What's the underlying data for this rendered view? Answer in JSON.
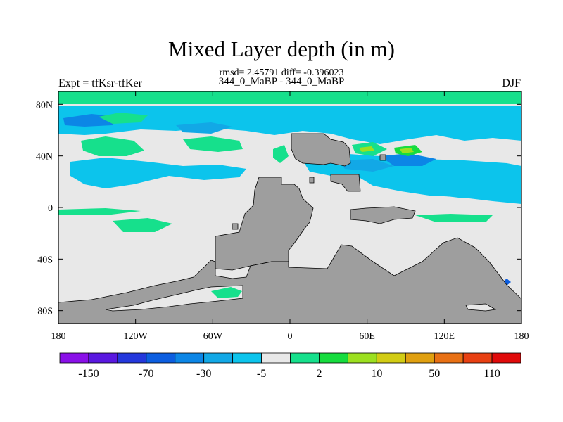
{
  "chart_data": {
    "type": "heatmap",
    "title": "Mixed Layer depth (in m)",
    "stats_line": "rmsd= 2.45791 diff= -0.396023",
    "runs_line": "344_0_MaBP - 344_0_MaBP",
    "left_label": "Expt = tfKsr-tfKer",
    "right_label": "DJF",
    "x_ticks": [
      "180",
      "120W",
      "60W",
      "0",
      "60E",
      "120E",
      "180"
    ],
    "y_ticks": [
      "80N",
      "40N",
      "0",
      "40S",
      "80S"
    ],
    "xlim": [
      -180,
      180
    ],
    "ylim": [
      -90,
      90
    ],
    "colorbar_labels": [
      "-150",
      "-70",
      "-30",
      "-5",
      "2",
      "10",
      "50",
      "110"
    ],
    "colorbar_colors": [
      "#8a10e8",
      "#5a18e0",
      "#2438dc",
      "#0c5ee0",
      "#0c86e6",
      "#12a8e6",
      "#0cc4ec",
      "#e8e8e8",
      "#16e08c",
      "#16dc3e",
      "#9ce020",
      "#d2cc14",
      "#e0a010",
      "#e87014",
      "#e84012",
      "#e00a0a"
    ],
    "land_color": "#9e9e9e",
    "background_color": "#e8e8e8"
  }
}
